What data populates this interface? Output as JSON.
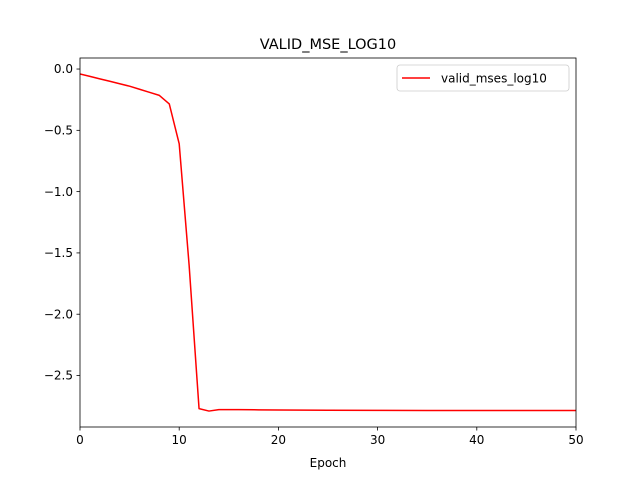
{
  "chart_data": {
    "type": "line",
    "title": "VALID_MSE_LOG10",
    "xlabel": "Epoch",
    "ylabel": "",
    "xlim": [
      0,
      50
    ],
    "ylim": [
      -2.92,
      0.09
    ],
    "xticks": [
      0,
      10,
      20,
      30,
      40,
      50
    ],
    "yticks": [
      0.0,
      -0.5,
      -1.0,
      -1.5,
      -2.0,
      -2.5
    ],
    "ytick_labels": [
      "0.0",
      "−0.5",
      "−1.0",
      "−1.5",
      "−2.0",
      "−2.5"
    ],
    "grid": false,
    "legend_position": "upper right",
    "series": [
      {
        "name": "valid_mses_log10",
        "color": "#ff0000",
        "x": [
          0,
          1,
          2,
          3,
          4,
          5,
          6,
          7,
          8,
          9,
          10,
          11,
          12,
          13,
          14,
          15,
          16,
          18,
          20,
          25,
          30,
          35,
          40,
          45,
          50
        ],
        "y": [
          -0.04,
          -0.06,
          -0.08,
          -0.1,
          -0.12,
          -0.14,
          -0.165,
          -0.19,
          -0.215,
          -0.285,
          -0.61,
          -1.6,
          -2.77,
          -2.79,
          -2.778,
          -2.778,
          -2.778,
          -2.78,
          -2.781,
          -2.783,
          -2.784,
          -2.785,
          -2.785,
          -2.785,
          -2.785
        ]
      }
    ]
  }
}
